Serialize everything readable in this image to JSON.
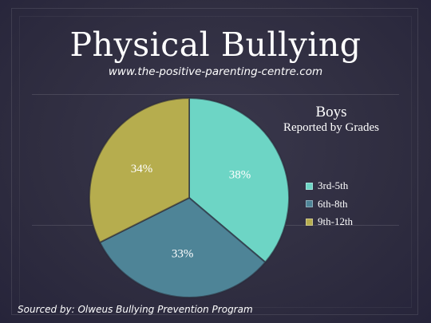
{
  "slide": {
    "title": "Physical Bullying",
    "subtitle": "www.the-positive-parenting-centre.com",
    "source": "Sourced by: Olweus Bullying Prevention Program"
  },
  "chart_data": {
    "type": "pie",
    "title": "Boys",
    "subtitle": "Reported by Grades",
    "categories": [
      "3rd-5th",
      "6th-8th",
      "9th-12th"
    ],
    "values": [
      38,
      33,
      34
    ],
    "labels": [
      "38%",
      "33%",
      "34%"
    ],
    "colors": [
      "#6dd5c5",
      "#4e8497",
      "#b6ad4e"
    ],
    "legend_position": "right"
  }
}
